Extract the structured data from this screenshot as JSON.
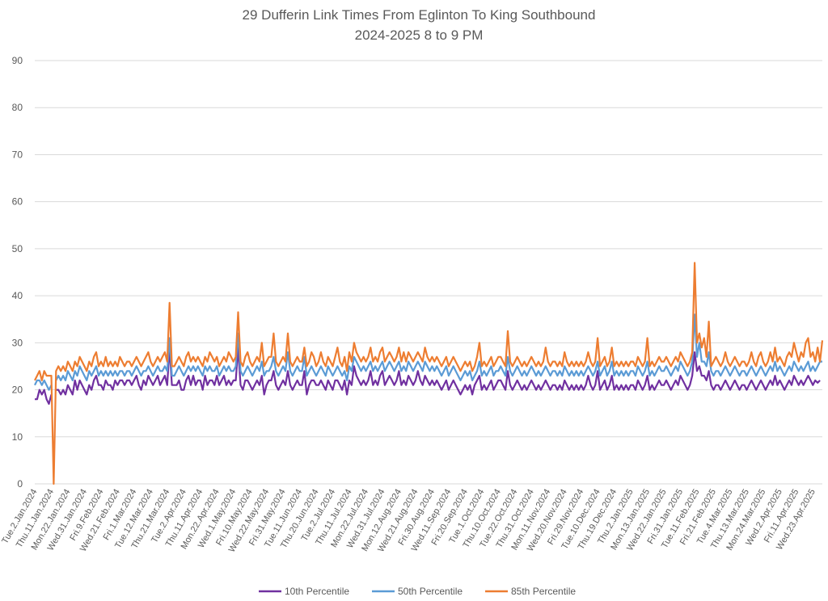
{
  "chart_data": {
    "type": "line",
    "title": [
      "29 Dufferin Link Times From Eglinton To King Southbound",
      "2024-2025 8 to 9 PM"
    ],
    "xlabel": "",
    "ylabel": "",
    "ylim": [
      0,
      90
    ],
    "yticks": [
      0,
      10,
      20,
      30,
      40,
      50,
      60,
      70,
      80,
      90
    ],
    "grid": true,
    "legend": "bottom",
    "x_tick_every_n_points": 7,
    "x_tick_labels": [
      "Tue.2.Jan.2024",
      "Thu.11.Jan.2024",
      "Mon.22.Jan.2024",
      "Wed.31.Jan.2024",
      "Fri.9.Feb.2024",
      "Wed.21.Feb.2024",
      "Fri.1.Mar.2024",
      "Tue.12.Mar.2024",
      "Thu.21.Mar.2024",
      "Tue.2.Apr.2024",
      "Thu.11.Apr.2024",
      "Mon.22.Apr.2024",
      "Wed.1.May.2024",
      "Fri.10.May.2024",
      "Wed.22.May.2024",
      "Fri.31.May.2024",
      "Tue.11.Jun.2024",
      "Thu.20.Jun.2024",
      "Tue.2.Jul.2024",
      "Thu.11.Jul.2024",
      "Mon.22.Jul.2024",
      "Wed.31.Jul.2024",
      "Mon.12.Aug.2024",
      "Wed.21.Aug.2024",
      "Fri.30.Aug.2024",
      "Wed.11.Sep.2024",
      "Fri.20.Sep.2024",
      "Tue.1.Oct.2024",
      "Thu.10.Oct.2024",
      "Tue.22.Oct.2024",
      "Thu.31.Oct.2024",
      "Mon.11.Nov.2024",
      "Wed.20.Nov.2024",
      "Fri.29.Nov.2024",
      "Tue.10.Dec.2024",
      "Thu.19.Dec.2024",
      "Thu.2.Jan.2025",
      "Mon.13.Jan.2025",
      "Wed.22.Jan.2025",
      "Fri.31.Jan.2025",
      "Tue.11.Feb.2025",
      "Fri.21.Feb.2025",
      "Tue.4.Mar.2025",
      "Thu.13.Mar.2025",
      "Mon.24.Mar.2025",
      "Wed.2.Apr.2025",
      "Fri.11.Apr.2025",
      "Wed.23.Apr.2025"
    ],
    "series": [
      {
        "name": "10th Percentile",
        "color": "#7030A0",
        "values": [
          18,
          18,
          20,
          19,
          20,
          18,
          17,
          19,
          null,
          20,
          20,
          19,
          20,
          19,
          21,
          20,
          19,
          22,
          20,
          22,
          21,
          20,
          19,
          21,
          20,
          22,
          23,
          21,
          21,
          20,
          22,
          21,
          21,
          20,
          22,
          21,
          22,
          22,
          21,
          22,
          22,
          21,
          22,
          23,
          21,
          20,
          22,
          21,
          23,
          22,
          21,
          22,
          23,
          21,
          22,
          23,
          21,
          29,
          21,
          21,
          21,
          22,
          20,
          20,
          22,
          23,
          21,
          23,
          21,
          22,
          22,
          20,
          23,
          21,
          22,
          22,
          21,
          23,
          21,
          22,
          23,
          21,
          22,
          21,
          22,
          22,
          29,
          21,
          20,
          22,
          22,
          21,
          20,
          21,
          22,
          21,
          23,
          19,
          21,
          22,
          22,
          24,
          21,
          20,
          21,
          22,
          21,
          24,
          21,
          20,
          21,
          22,
          21,
          21,
          24,
          19,
          21,
          22,
          22,
          21,
          21,
          22,
          21,
          20,
          22,
          21,
          20,
          22,
          22,
          21,
          20,
          22,
          19,
          22,
          21,
          25,
          23,
          22,
          21,
          22,
          21,
          22,
          24,
          21,
          22,
          21,
          23,
          24,
          21,
          22,
          23,
          22,
          21,
          22,
          24,
          21,
          22,
          21,
          23,
          22,
          21,
          22,
          24,
          22,
          21,
          23,
          22,
          21,
          22,
          21,
          22,
          21,
          20,
          21,
          22,
          20,
          21,
          22,
          21,
          20,
          19,
          20,
          21,
          20,
          21,
          19,
          21,
          22,
          23,
          20,
          21,
          20,
          21,
          22,
          20,
          21,
          22,
          22,
          21,
          20,
          24,
          21,
          20,
          21,
          22,
          21,
          20,
          21,
          20,
          21,
          22,
          21,
          20,
          21,
          20,
          21,
          22,
          21,
          20,
          21,
          21,
          20,
          21,
          20,
          22,
          21,
          20,
          21,
          20,
          21,
          20,
          21,
          20,
          21,
          23,
          21,
          20,
          21,
          24,
          20,
          21,
          22,
          20,
          21,
          23,
          20,
          21,
          20,
          21,
          20,
          21,
          20,
          21,
          21,
          20,
          22,
          21,
          20,
          21,
          23,
          20,
          21,
          20,
          21,
          22,
          21,
          21,
          22,
          21,
          20,
          21,
          22,
          21,
          23,
          22,
          21,
          20,
          21,
          23,
          28,
          24,
          25,
          23,
          23,
          22,
          24,
          21,
          20,
          21,
          21,
          20,
          21,
          22,
          21,
          20,
          21,
          22,
          21,
          20,
          21,
          21,
          20,
          21,
          22,
          21,
          20,
          21,
          22,
          21,
          20,
          21,
          22,
          21,
          23,
          21,
          22,
          21,
          20,
          21,
          22,
          21,
          23,
          22,
          21,
          22,
          21,
          22,
          23,
          22,
          21,
          22,
          21.5,
          22,
          null
        ]
      },
      {
        "name": "50th Percentile",
        "color": "#5B9BD5",
        "values": [
          21,
          22,
          22,
          21,
          22,
          21,
          20,
          21,
          null,
          22,
          23,
          22,
          23,
          22,
          24,
          23,
          22,
          24,
          23,
          25,
          24,
          23,
          22,
          24,
          23,
          24,
          25,
          23,
          24,
          23,
          24,
          23,
          24,
          23,
          24,
          23,
          24,
          24,
          23,
          24,
          24,
          23,
          24,
          25,
          24,
          23,
          24,
          24,
          25,
          24,
          23,
          24,
          25,
          24,
          24,
          25,
          24,
          31,
          23,
          23,
          24,
          25,
          24,
          23,
          24,
          25,
          24,
          25,
          24,
          25,
          24,
          23,
          25,
          24,
          25,
          24,
          24,
          25,
          23,
          24,
          25,
          24,
          25,
          24,
          24,
          25,
          32,
          24,
          23,
          24,
          25,
          24,
          23,
          24,
          25,
          24,
          26,
          23,
          24,
          24,
          25,
          27,
          24,
          23,
          24,
          25,
          24,
          28,
          24,
          23,
          24,
          25,
          24,
          24,
          27,
          23,
          24,
          25,
          24,
          23,
          24,
          25,
          24,
          23,
          25,
          24,
          23,
          24,
          25,
          24,
          23,
          24,
          22,
          25,
          24,
          27,
          26,
          25,
          24,
          25,
          24,
          25,
          26,
          24,
          25,
          24,
          25,
          26,
          24,
          25,
          26,
          25,
          24,
          25,
          26,
          24,
          25,
          24,
          26,
          25,
          24,
          25,
          26,
          25,
          24,
          26,
          25,
          24,
          25,
          24,
          25,
          24,
          23,
          24,
          25,
          23,
          24,
          25,
          24,
          23,
          22,
          23,
          24,
          23,
          24,
          22,
          23,
          24,
          26,
          23,
          24,
          23,
          24,
          25,
          23,
          24,
          24,
          25,
          24,
          23,
          27,
          24,
          23,
          24,
          25,
          24,
          23,
          24,
          23,
          24,
          25,
          24,
          23,
          24,
          23,
          24,
          25,
          24,
          23,
          24,
          24,
          23,
          24,
          23,
          25,
          24,
          23,
          24,
          23,
          24,
          23,
          24,
          23,
          24,
          25,
          24,
          23,
          24,
          26,
          23,
          24,
          25,
          23,
          24,
          26,
          23,
          24,
          23,
          24,
          23,
          24,
          23,
          24,
          24,
          23,
          25,
          24,
          23,
          24,
          26,
          23,
          24,
          23,
          24,
          25,
          24,
          24,
          25,
          24,
          23,
          24,
          25,
          24,
          26,
          25,
          24,
          23,
          24,
          26,
          36,
          27,
          30,
          26,
          26,
          25,
          28,
          24,
          23,
          24,
          24,
          23,
          24,
          25,
          24,
          23,
          24,
          25,
          24,
          23,
          24,
          24,
          23,
          24,
          25,
          24,
          23,
          24,
          25,
          24,
          23,
          24,
          25,
          24,
          26,
          24,
          25,
          24,
          23,
          24,
          25,
          24,
          26,
          25,
          24,
          25,
          24,
          25,
          26,
          24,
          25,
          24,
          25,
          26,
          26
        ]
      },
      {
        "name": "85th Percentile",
        "color": "#ED7D31",
        "values": [
          22,
          23,
          24,
          22,
          24,
          23,
          23,
          23,
          0,
          24,
          25,
          24,
          25,
          24,
          26,
          25,
          24,
          26,
          25,
          27,
          26,
          25,
          24,
          26,
          25,
          27,
          28,
          25,
          26,
          25,
          27,
          25,
          26,
          25,
          26,
          25,
          27,
          26,
          25,
          26,
          26,
          25,
          26,
          27,
          26,
          25,
          26,
          27,
          28,
          26,
          25,
          26,
          27,
          26,
          27,
          28,
          26,
          38.5,
          25,
          25,
          26,
          27,
          26,
          25,
          27,
          28,
          26,
          27,
          26,
          27,
          26,
          25,
          27,
          26,
          28,
          27,
          26,
          27,
          25,
          26,
          27,
          26,
          28,
          27,
          26,
          27,
          36.5,
          26,
          25,
          27,
          28,
          26,
          25,
          26,
          27,
          26,
          30,
          25,
          26,
          27,
          27,
          32,
          26,
          25,
          26,
          27,
          26,
          32,
          26,
          25,
          26,
          27,
          26,
          26,
          29,
          25,
          26,
          28,
          27,
          25,
          26,
          28,
          26,
          25,
          27,
          26,
          25,
          27,
          29,
          26,
          25,
          27,
          24,
          28,
          26,
          30,
          28,
          27,
          26,
          27,
          26,
          27,
          29,
          26,
          27,
          26,
          28,
          29,
          26,
          27,
          28,
          27,
          26,
          27,
          29,
          26,
          28,
          26,
          28,
          27,
          26,
          27,
          28,
          27,
          26,
          29,
          27,
          26,
          27,
          26,
          27,
          26,
          25,
          26,
          27,
          25,
          26,
          27,
          26,
          25,
          24,
          25,
          26,
          25,
          26,
          24,
          25,
          27,
          30,
          25,
          26,
          25,
          26,
          27,
          25,
          26,
          27,
          27,
          26,
          25,
          32.5,
          26,
          25,
          26,
          27,
          26,
          25,
          26,
          25,
          26,
          27,
          26,
          25,
          26,
          25,
          26,
          29,
          26,
          25,
          26,
          26,
          25,
          26,
          25,
          28,
          26,
          25,
          26,
          25,
          26,
          25,
          26,
          25,
          26,
          28,
          26,
          25,
          26,
          31,
          25,
          26,
          27,
          25,
          26,
          29,
          25,
          26,
          25,
          26,
          25,
          26,
          25,
          26,
          26,
          25,
          27,
          26,
          25,
          26,
          31,
          25,
          26,
          25,
          26,
          27,
          26,
          26,
          27,
          26,
          25,
          26,
          27,
          26,
          28,
          27,
          26,
          25,
          26,
          28,
          47,
          30,
          32,
          29,
          31,
          27,
          34.5,
          25,
          26,
          27,
          26,
          25,
          26,
          28,
          26,
          25,
          26,
          27,
          26,
          25,
          26,
          26,
          25,
          26,
          28,
          26,
          25,
          27,
          28,
          26,
          25,
          26,
          28,
          26,
          29,
          26,
          27,
          26,
          25,
          27,
          28,
          27,
          30,
          28,
          26,
          28,
          27,
          30,
          31,
          27,
          28,
          26,
          29,
          26,
          30.5
        ]
      }
    ]
  }
}
